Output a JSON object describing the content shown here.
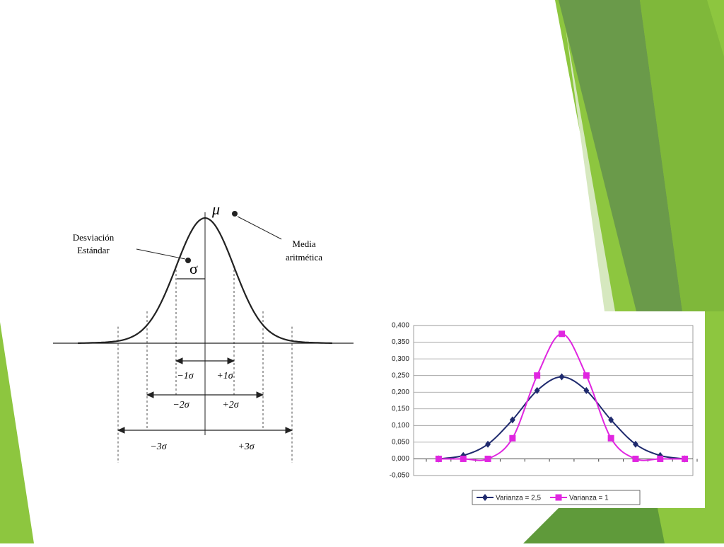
{
  "diagram": {
    "mu": "μ",
    "sigma": "σ",
    "std_label": [
      "Desviación",
      "Estándar"
    ],
    "mean_label": [
      "Media",
      "aritmética"
    ],
    "ranges": [
      [
        "−1σ",
        "+1σ"
      ],
      [
        "−2σ",
        "+2σ"
      ],
      [
        "−3σ",
        "+3σ"
      ]
    ]
  },
  "chart_data": {
    "type": "line",
    "categories": [
      null,
      null,
      null,
      null,
      null,
      null,
      null,
      null,
      null,
      null,
      null
    ],
    "series": [
      {
        "name": "Varianza = 2,5",
        "color": "#1f2a6e",
        "marker": "diamond",
        "values": [
          0.0,
          0.01,
          0.044,
          0.117,
          0.205,
          0.246,
          0.205,
          0.117,
          0.044,
          0.01,
          0.0
        ]
      },
      {
        "name": "Varianza = 1",
        "color": "#e026e0",
        "marker": "square",
        "values": [
          0.0,
          0.0,
          0.0,
          0.062,
          0.25,
          0.375,
          0.25,
          0.062,
          0.0,
          0.0,
          0.0
        ]
      }
    ],
    "ylim": [
      -0.05,
      0.4
    ],
    "yticks": [
      {
        "value": -0.05,
        "label": "-0,050"
      },
      {
        "value": 0,
        "label": "0,000"
      },
      {
        "value": 0.05,
        "label": "0,050"
      },
      {
        "value": 0.1,
        "label": "0,100"
      },
      {
        "value": 0.15,
        "label": "0,150"
      },
      {
        "value": 0.2,
        "label": "0,200"
      },
      {
        "value": 0.25,
        "label": "0,250"
      },
      {
        "value": 0.3,
        "label": "0,300"
      },
      {
        "value": 0.35,
        "label": "0,350"
      },
      {
        "value": 0.4,
        "label": "0,400"
      }
    ],
    "grid": true,
    "legend": "bottom"
  }
}
